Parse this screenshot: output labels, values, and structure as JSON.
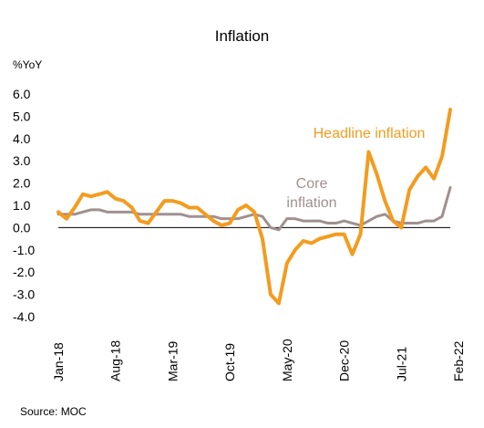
{
  "chart_data": {
    "type": "line",
    "title": "Inflation",
    "ylabel": "%YoY",
    "source": "Source:  MOC",
    "ylim": [
      -4.0,
      6.0
    ],
    "yticks": [
      "6.0",
      "5.0",
      "4.0",
      "3.0",
      "2.0",
      "1.0",
      "0.0",
      "-1.0",
      "-2.0",
      "-3.0",
      "-4.0"
    ],
    "xticks": [
      {
        "label": "Jan-18",
        "index": 0
      },
      {
        "label": "Aug-18",
        "index": 7
      },
      {
        "label": "Mar-19",
        "index": 14
      },
      {
        "label": "Oct-19",
        "index": 21
      },
      {
        "label": "May-20",
        "index": 28
      },
      {
        "label": "Dec-20",
        "index": 35
      },
      {
        "label": "Jul-21",
        "index": 42
      },
      {
        "label": "Feb-22",
        "index": 49
      }
    ],
    "series": [
      {
        "name": "Headline inflation",
        "label_lines": [
          "Headline inflation"
        ],
        "color": "#F39C1F",
        "values": [
          0.7,
          0.4,
          0.9,
          1.5,
          1.4,
          1.5,
          1.6,
          1.3,
          1.2,
          0.9,
          0.3,
          0.2,
          0.7,
          1.2,
          1.2,
          1.1,
          0.9,
          0.9,
          0.6,
          0.3,
          0.1,
          0.2,
          0.8,
          1.0,
          0.7,
          -0.5,
          -3.0,
          -3.4,
          -1.6,
          -1.0,
          -0.6,
          -0.7,
          -0.5,
          -0.4,
          -0.3,
          -0.3,
          -1.2,
          -0.3,
          3.4,
          2.4,
          1.2,
          0.3,
          0.0,
          1.7,
          2.3,
          2.7,
          2.2,
          3.2,
          5.3
        ]
      },
      {
        "name": "Core inflation",
        "label_lines": [
          "Core",
          "inflation"
        ],
        "color": "#A09090",
        "values": [
          0.6,
          0.6,
          0.6,
          0.7,
          0.8,
          0.8,
          0.7,
          0.7,
          0.7,
          0.7,
          0.6,
          0.6,
          0.6,
          0.6,
          0.6,
          0.6,
          0.5,
          0.5,
          0.5,
          0.5,
          0.4,
          0.4,
          0.4,
          0.5,
          0.6,
          0.5,
          0.0,
          -0.1,
          0.4,
          0.4,
          0.3,
          0.3,
          0.3,
          0.2,
          0.2,
          0.3,
          0.2,
          0.1,
          0.3,
          0.5,
          0.6,
          0.3,
          0.2,
          0.2,
          0.2,
          0.3,
          0.3,
          0.5,
          1.8
        ]
      }
    ]
  }
}
